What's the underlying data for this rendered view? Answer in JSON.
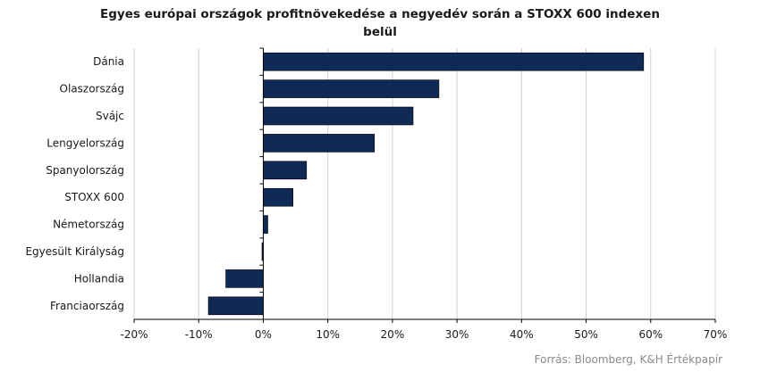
{
  "chart_data": {
    "type": "bar",
    "orientation": "horizontal",
    "title_lines": [
      "Egyes európai országok profitnövekedése a negyedév során a STOXX 600 indexen",
      "belül"
    ],
    "categories": [
      "Dánia",
      "Olaszország",
      "Svájc",
      "Lengyelország",
      "Spanyolország",
      "STOXX 600",
      "Németország",
      "Egyesült Királyság",
      "Hollandia",
      "Franciaország"
    ],
    "values": [
      58.9,
      27.2,
      23.2,
      17.2,
      6.7,
      4.6,
      0.7,
      -0.2,
      -5.8,
      -8.5
    ],
    "xlim": [
      -20,
      70
    ],
    "x_ticks": [
      -20,
      -10,
      0,
      10,
      20,
      30,
      40,
      50,
      60,
      70
    ],
    "x_tick_labels": [
      "-20%",
      "-10%",
      "0%",
      "10%",
      "20%",
      "30%",
      "40%",
      "50%",
      "60%",
      "70%"
    ],
    "grid": "vertical",
    "bar_color": "#0f2a55",
    "grid_color": "#d0d0d0",
    "axis_color": "#000000"
  },
  "source": "Forrás: Bloomberg, K&H Értékpapír"
}
